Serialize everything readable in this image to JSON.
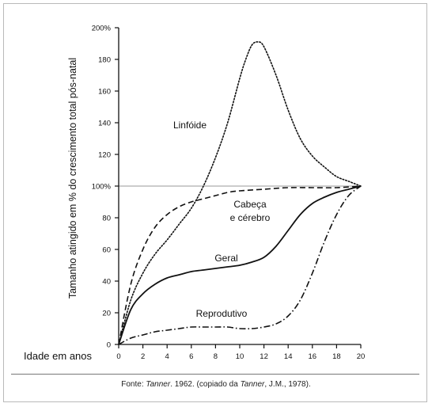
{
  "caption": {
    "source_prefix": "Fonte: ",
    "source_author": "Tanner",
    "source_middle": ". 1962. (copiado da ",
    "source_author2": "Tanner",
    "source_end": ", J.M., 1978)."
  },
  "chart_data": {
    "type": "line",
    "xlabel": "Idade em anos",
    "ylabel": "Tamanho atingido em % do crescimento total pós-natal",
    "xlim": [
      0,
      20
    ],
    "ylim": [
      0,
      200
    ],
    "x_ticks": [
      "0",
      "2",
      "4",
      "6",
      "8",
      "10",
      "12",
      "14",
      "16",
      "18",
      "20"
    ],
    "y_ticks": [
      "0",
      "20",
      "40",
      "60",
      "80",
      "100%",
      "120",
      "140",
      "160",
      "180",
      "200%"
    ],
    "reference_line": 100,
    "grid": false,
    "series": [
      {
        "name": "Linfóide",
        "style": "dotted",
        "x": [
          0,
          1,
          2,
          3,
          4,
          5,
          6,
          7,
          8,
          9,
          10,
          10.5,
          11,
          11.5,
          12,
          13,
          14,
          15,
          16,
          17,
          18,
          19,
          20
        ],
        "y": [
          0,
          28,
          45,
          57,
          66,
          76,
          86,
          100,
          118,
          140,
          168,
          180,
          189,
          191,
          188,
          170,
          148,
          130,
          119,
          112,
          106,
          103,
          100
        ]
      },
      {
        "name": "Cabeça e cérebro",
        "style": "dashed",
        "x": [
          0,
          1,
          2,
          3,
          4,
          5,
          6,
          7,
          8,
          9,
          10,
          12,
          14,
          16,
          18,
          20
        ],
        "y": [
          0,
          38,
          60,
          74,
          82,
          87,
          90,
          92,
          94,
          96,
          97,
          98,
          99,
          99,
          99,
          100
        ]
      },
      {
        "name": "Geral",
        "style": "solid",
        "x": [
          0,
          1,
          2,
          3,
          4,
          5,
          6,
          7,
          8,
          9,
          10,
          11,
          12,
          13,
          14,
          15,
          16,
          17,
          18,
          19,
          20
        ],
        "y": [
          0,
          22,
          32,
          38,
          42,
          44,
          46,
          47,
          48,
          49,
          50,
          52,
          55,
          62,
          72,
          82,
          89,
          93,
          96,
          98,
          100
        ]
      },
      {
        "name": "Reprodutivo",
        "style": "dashdot",
        "x": [
          0,
          1,
          2,
          3,
          4,
          5,
          6,
          7,
          8,
          9,
          10,
          11,
          12,
          13,
          14,
          15,
          16,
          17,
          18,
          19,
          20
        ],
        "y": [
          0,
          4,
          6,
          8,
          9,
          10,
          11,
          11,
          11,
          11,
          10,
          10,
          11,
          13,
          18,
          28,
          45,
          65,
          82,
          94,
          100
        ]
      }
    ],
    "labels": [
      {
        "text": "Linfóide",
        "series": "Linfóide"
      },
      {
        "text": "Cabeça",
        "series": "Cabeça e cérebro"
      },
      {
        "text": "e cérebro",
        "series": "Cabeça e cérebro"
      },
      {
        "text": "Geral",
        "series": "Geral"
      },
      {
        "text": "Reprodutivo",
        "series": "Reprodutivo"
      }
    ]
  }
}
